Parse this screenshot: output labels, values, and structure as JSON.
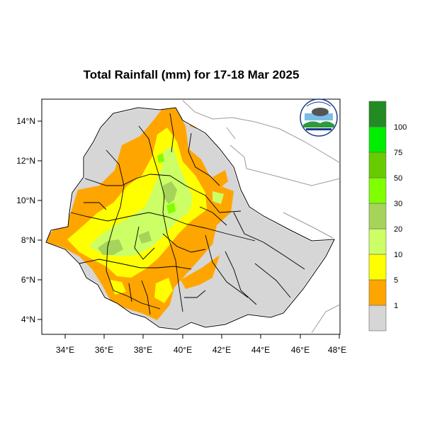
{
  "title": "Total Rainfall (mm) for 17-18 Mar 2025",
  "x_ticks": [
    "34°E",
    "36°E",
    "38°E",
    "40°E",
    "42°E",
    "44°E",
    "46°E",
    "48°E"
  ],
  "y_ticks": [
    "14°N",
    "12°N",
    "10°N",
    "8°N",
    "6°N",
    "4°N"
  ],
  "legend": {
    "labels": [
      "1",
      "5",
      "10",
      "20",
      "30",
      "50",
      "75",
      "100"
    ],
    "colors": [
      "#d6d6d6",
      "#ffa500",
      "#ffff00",
      "#ccff66",
      "#a6d45a",
      "#80ff00",
      "#66cc00",
      "#00ee00",
      "#228b22"
    ]
  },
  "colors": {
    "country_fill": "#d6d6d6",
    "light_rain": "#ffa500",
    "moderate_rain": "#ffff00",
    "heavy_rain": "#ccff66",
    "very_heavy_rain": "#a6d45a"
  }
}
